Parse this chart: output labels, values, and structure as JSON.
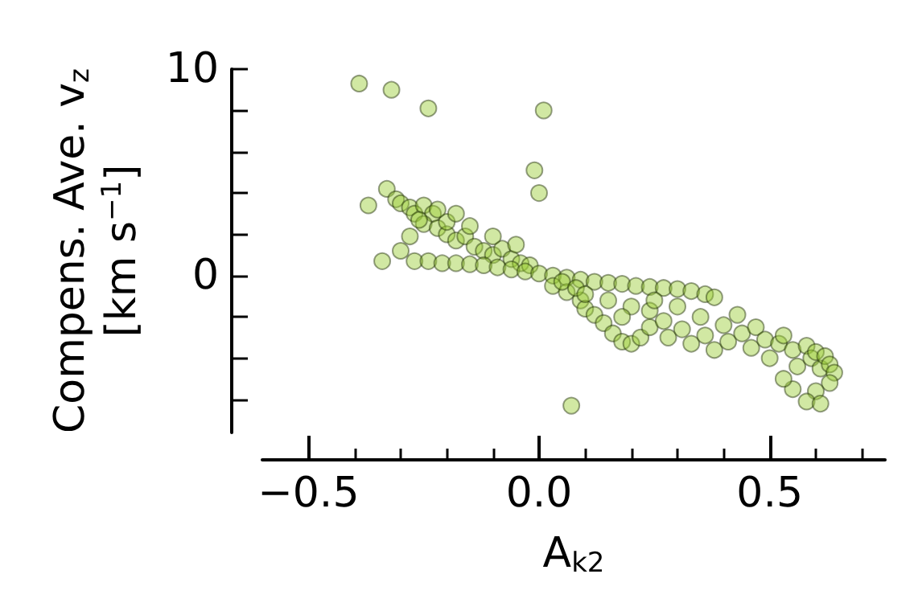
{
  "chart_data": {
    "type": "scatter",
    "xlabel": "A$_{k2}$",
    "ylabel": "Compens. Ave. v$_{z}$\n[km s$^{−1}$]",
    "xlim": [
      -0.6,
      0.75
    ],
    "ylim": [
      -7.6,
      10
    ],
    "xticks": [
      {
        "value": -0.5,
        "label": "−0.5"
      },
      {
        "value": -0.4,
        "label": null
      },
      {
        "value": -0.3,
        "label": null
      },
      {
        "value": -0.2,
        "label": null
      },
      {
        "value": -0.1,
        "label": null
      },
      {
        "value": 0,
        "label": "0.0"
      },
      {
        "value": 0.1,
        "label": null
      },
      {
        "value": 0.2,
        "label": null
      },
      {
        "value": 0.3,
        "label": null
      },
      {
        "value": 0.4,
        "label": null
      },
      {
        "value": 0.5,
        "label": "0.5"
      },
      {
        "value": 0.6,
        "label": null
      },
      {
        "value": 0.7,
        "label": null
      }
    ],
    "yticks": [
      {
        "value": -6,
        "label": null
      },
      {
        "value": -4,
        "label": null
      },
      {
        "value": -2,
        "label": null
      },
      0,
      {
        "value": 2,
        "label": null
      },
      {
        "value": 4,
        "label": null
      },
      {
        "value": 6,
        "label": null
      },
      {
        "value": 8,
        "label": null
      },
      10
    ],
    "grid": false,
    "marker": "circle",
    "series": [
      {
        "color": "#9acd32",
        "x": [
          -0.33,
          -0.31,
          -0.3,
          -0.28,
          -0.27,
          -0.25,
          -0.23,
          -0.25,
          -0.22,
          -0.2,
          -0.18,
          -0.16,
          -0.14,
          -0.12,
          -0.1,
          -0.08,
          -0.06,
          -0.04,
          -0.02,
          -0.2,
          -0.15,
          -0.1,
          -0.05,
          -0.28,
          -0.3,
          -0.26,
          -0.18,
          -0.22,
          -0.27,
          -0.24,
          -0.21,
          -0.18,
          -0.15,
          -0.12,
          -0.09,
          -0.06,
          -0.03,
          0,
          0.03,
          0.06,
          0.09,
          0.12,
          0.15,
          0.18,
          0.21,
          0.24,
          0.27,
          0.3,
          0.33,
          0.36,
          0.38,
          0.03,
          0.06,
          0.09,
          0.1,
          0.12,
          0.14,
          0.16,
          0.18,
          0.2,
          0.22,
          0.24,
          0.24,
          0.27,
          0.28,
          0.3,
          0.31,
          0.33,
          0.35,
          0.36,
          0.38,
          0.4,
          0.41,
          0.43,
          0.44,
          0.46,
          0.47,
          0.49,
          0.5,
          0.52,
          0.53,
          0.55,
          0.56,
          0.58,
          0.59,
          0.6,
          0.61,
          0.62,
          0.63,
          0.64,
          0.63,
          0.6,
          0.58,
          0.61,
          0.55,
          0.53,
          0.05,
          0.08,
          0.15,
          0.2,
          0.25,
          0.18,
          0.1,
          -0.39,
          -0.32,
          -0.24,
          0.01,
          -0.01,
          0.0,
          -0.37,
          -0.34,
          0.07
        ],
        "values": [
          4.2,
          3.7,
          3.5,
          3.3,
          3.0,
          3.4,
          3.0,
          2.5,
          2.3,
          2.0,
          1.7,
          1.9,
          1.4,
          1.2,
          1.0,
          1.3,
          0.8,
          0.6,
          0.5,
          2.6,
          2.4,
          1.9,
          1.5,
          1.9,
          1.2,
          2.7,
          3.0,
          3.2,
          0.7,
          0.7,
          0.6,
          0.6,
          0.55,
          0.5,
          0.4,
          0.3,
          0.2,
          0.1,
          0,
          -0.1,
          -0.2,
          -0.3,
          -0.35,
          -0.4,
          -0.5,
          -0.55,
          -0.6,
          -0.65,
          -0.75,
          -0.9,
          -1.05,
          -0.5,
          -0.8,
          -1.2,
          -1.6,
          -1.9,
          -2.3,
          -2.8,
          -3.2,
          -3.3,
          -3.0,
          -2.5,
          -1.7,
          -2.2,
          -3.0,
          -1.5,
          -2.6,
          -3.3,
          -2.0,
          -2.9,
          -3.6,
          -2.4,
          -3.2,
          -1.9,
          -2.8,
          -3.5,
          -2.5,
          -3.1,
          -4.0,
          -3.3,
          -2.9,
          -3.6,
          -4.4,
          -3.4,
          -4.0,
          -3.7,
          -4.5,
          -3.9,
          -4.3,
          -4.7,
          -5.2,
          -5.6,
          -6.1,
          -6.2,
          -5.5,
          -5.0,
          -0.3,
          -0.6,
          -1.2,
          -1.5,
          -1.2,
          -2.0,
          -0.9,
          9.3,
          9.0,
          8.1,
          8.0,
          5.1,
          4.0,
          3.4,
          0.7,
          -6.3
        ]
      }
    ]
  }
}
